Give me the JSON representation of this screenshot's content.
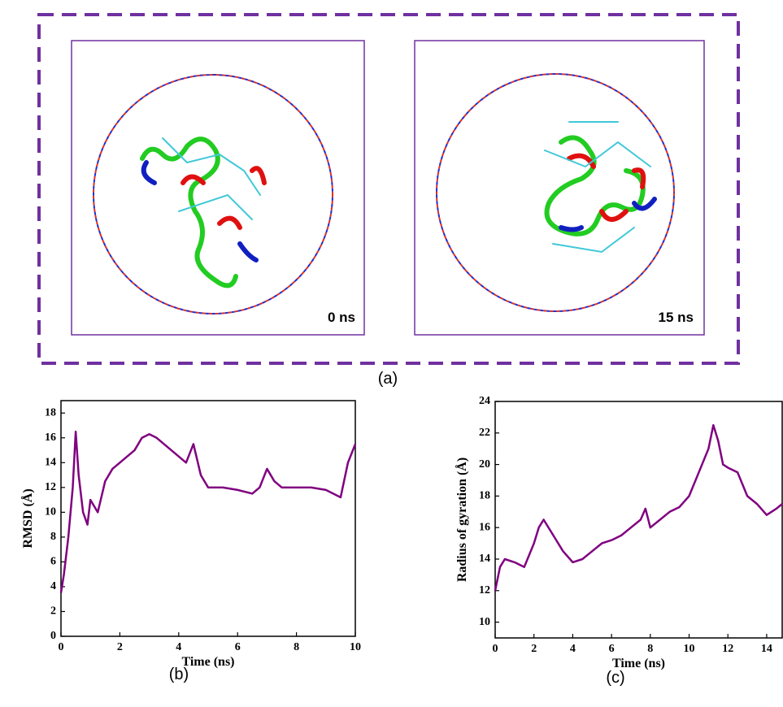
{
  "panel_a": {
    "label": "(a)",
    "snapshots": [
      "0 ns",
      "15 ns"
    ]
  },
  "chart_data": [
    {
      "type": "line",
      "panel_label": "(b)",
      "x_label": "Time (ns)",
      "y_label": "RMSD (Å)",
      "x": [
        0,
        0.1,
        0.25,
        0.4,
        0.5,
        0.6,
        0.75,
        0.9,
        1.0,
        1.25,
        1.5,
        1.75,
        2,
        2.25,
        2.5,
        2.75,
        3,
        3.25,
        3.5,
        3.75,
        4,
        4.25,
        4.5,
        4.75,
        5,
        5.5,
        6,
        6.5,
        6.75,
        7,
        7.25,
        7.5,
        8,
        8.5,
        9,
        9.5,
        9.75,
        10
      ],
      "series": [
        {
          "color": "#800080",
          "values": [
            3.5,
            5,
            8,
            12,
            16.5,
            13,
            10,
            9,
            11,
            10,
            12.5,
            13.5,
            14,
            14.5,
            15,
            16,
            16.3,
            16,
            15.5,
            15,
            14.5,
            14,
            15.5,
            13,
            12,
            12,
            11.8,
            11.5,
            12,
            13.5,
            12.5,
            12,
            12,
            12,
            11.8,
            11.2,
            14,
            15.5
          ]
        }
      ],
      "xlim": [
        0,
        10
      ],
      "ylim": [
        0,
        19
      ],
      "xticks": [
        0,
        2,
        4,
        6,
        8,
        10
      ],
      "yticks": [
        0,
        2,
        4,
        6,
        8,
        10,
        12,
        14,
        16,
        18
      ]
    },
    {
      "type": "line",
      "panel_label": "(c)",
      "x_label": "Time (ns)",
      "y_label": "Radius of gyration (Å)",
      "x": [
        0,
        0.25,
        0.5,
        1,
        1.5,
        2,
        2.25,
        2.5,
        3,
        3.5,
        4,
        4.5,
        5,
        5.5,
        6,
        6.5,
        7,
        7.5,
        7.75,
        8,
        8.5,
        9,
        9.5,
        10,
        10.5,
        11,
        11.25,
        11.5,
        11.75,
        12,
        12.5,
        13,
        13.5,
        14,
        14.5,
        14.8
      ],
      "series": [
        {
          "color": "#800080",
          "values": [
            12,
            13.5,
            14,
            13.8,
            13.5,
            15,
            16,
            16.5,
            15.5,
            14.5,
            13.8,
            14,
            14.5,
            15,
            15.2,
            15.5,
            16,
            16.5,
            17.2,
            16,
            16.5,
            17,
            17.3,
            18,
            19.5,
            21,
            22.5,
            21.5,
            20,
            19.8,
            19.5,
            18,
            17.5,
            16.8,
            17.2,
            17.5
          ]
        }
      ],
      "xlim": [
        0,
        14.8
      ],
      "ylim": [
        9,
        24
      ],
      "xticks": [
        0,
        2,
        4,
        6,
        8,
        10,
        12,
        14
      ],
      "yticks": [
        10,
        12,
        14,
        16,
        18,
        20,
        22,
        24
      ]
    }
  ]
}
